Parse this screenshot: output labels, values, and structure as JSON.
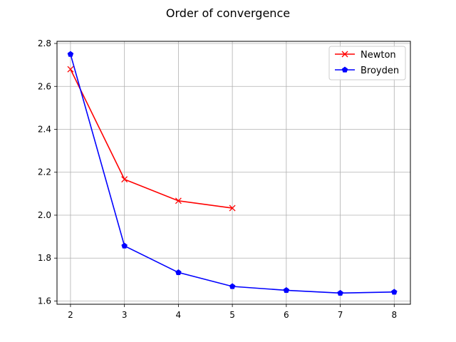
{
  "chart_data": {
    "type": "line",
    "title": "Order of convergence",
    "xlabel": "",
    "ylabel": "",
    "xlim": [
      1.75,
      8.3
    ],
    "ylim": [
      1.585,
      2.81
    ],
    "xticks": [
      2,
      3,
      4,
      5,
      6,
      7,
      8
    ],
    "yticks": [
      1.6,
      1.8,
      2.0,
      2.2,
      2.4,
      2.6,
      2.8
    ],
    "ytick_labels": [
      "1.6",
      "1.8",
      "2.0",
      "2.2",
      "2.4",
      "2.6",
      "2.8"
    ],
    "grid": true,
    "legend_position": "top-right",
    "series": [
      {
        "name": "Newton",
        "color": "#ff0000",
        "marker": "x",
        "x": [
          2,
          3,
          4,
          5
        ],
        "y": [
          2.68,
          2.167,
          2.067,
          2.033
        ]
      },
      {
        "name": "Broyden",
        "color": "#0000ff",
        "marker": "pentagon",
        "x": [
          2,
          3,
          4,
          5,
          6,
          7,
          8
        ],
        "y": [
          2.75,
          1.857,
          1.733,
          1.668,
          1.65,
          1.637,
          1.642
        ]
      }
    ]
  }
}
